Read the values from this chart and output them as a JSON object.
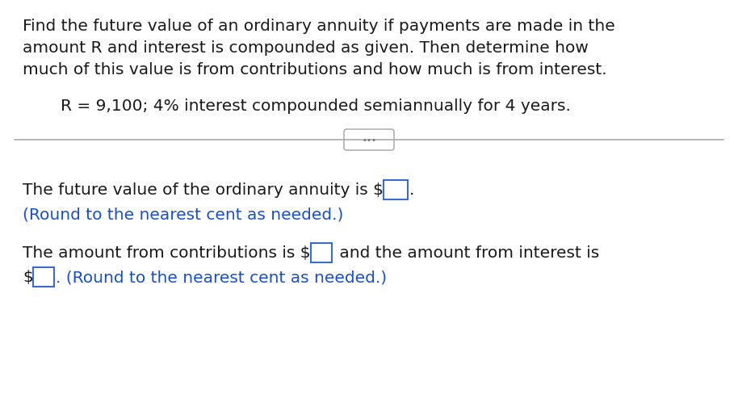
{
  "background_color": "#ffffff",
  "line1": "Find the future value of an ordinary annuity if payments are made in the",
  "line2": "amount R and interest is compounded as given. Then determine how",
  "line3": "much of this value is from contributions and how much is from interest.",
  "line4": "R = 9,100; 4% interest compounded semiannually for 4 years.",
  "line5_pre": "The future value of the ordinary annuity is $",
  "line5_post": ".",
  "line6": "(Round to the nearest cent as needed.)",
  "line7_pre": "The amount from contributions is $",
  "line7_post": " and the amount from interest is",
  "line8_pre": "$",
  "line8_post": ". (Round to the nearest cent as needed.)",
  "text_color": "#1a1a1a",
  "blue_color": "#1a4fcc",
  "box_edge_color": "#3a6bc8",
  "sep_color": "#aaaaaa",
  "dots_color": "#777777",
  "font_size": 14.5,
  "font_family": "DejaVu Sans"
}
